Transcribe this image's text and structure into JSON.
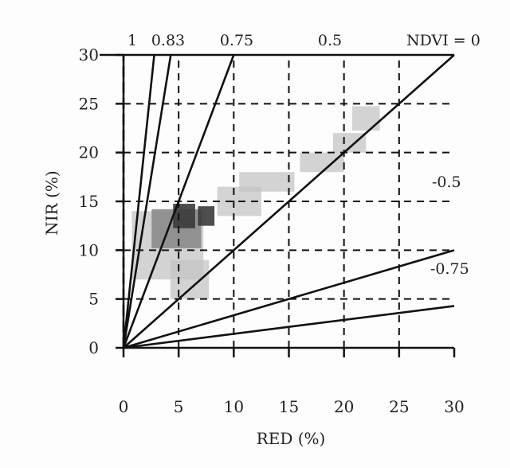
{
  "chart_data": {
    "type": "scatter",
    "title": "",
    "xlabel": "RED (%)",
    "ylabel": "NIR (%)",
    "xlim": [
      0,
      30
    ],
    "ylim": [
      0,
      30
    ],
    "xticks": [
      "0",
      "5",
      "10",
      "15",
      "20",
      "25",
      "30"
    ],
    "yticks": [
      "0",
      "5",
      "10",
      "15",
      "20",
      "25",
      "30"
    ],
    "grid": true,
    "grid_style": "dashed",
    "ndvi_lines": [
      {
        "label": "1",
        "value": 1
      },
      {
        "label": "0.83",
        "value": 0.83
      },
      {
        "label": "0.75",
        "value": 0.75
      },
      {
        "label": "0.5",
        "value": 0.5
      },
      {
        "label": "NDVI = 0",
        "value": 0
      },
      {
        "label": "-0.5",
        "value": -0.5
      },
      {
        "label": "-0.75",
        "value": -0.75
      }
    ],
    "density_cells": [
      {
        "x": 5.5,
        "y": 13.5,
        "w": 2,
        "h": 2.5,
        "level": 3
      },
      {
        "x": 7.5,
        "y": 13.5,
        "w": 1.5,
        "h": 2,
        "level": 3
      },
      {
        "x": 4.8,
        "y": 12.2,
        "w": 4.5,
        "h": 4,
        "level": 2
      },
      {
        "x": 4.0,
        "y": 10.5,
        "w": 6.5,
        "h": 7,
        "level": 1
      },
      {
        "x": 6.0,
        "y": 7.0,
        "w": 3.5,
        "h": 4,
        "level": 1
      },
      {
        "x": 10.5,
        "y": 15.0,
        "w": 4,
        "h": 3,
        "level": 1
      },
      {
        "x": 13.0,
        "y": 17.0,
        "w": 5,
        "h": 2,
        "level": 1
      },
      {
        "x": 18.0,
        "y": 19.0,
        "w": 4,
        "h": 2,
        "level": 1
      },
      {
        "x": 20.5,
        "y": 21.0,
        "w": 3,
        "h": 2,
        "level": 1
      },
      {
        "x": 22.0,
        "y": 23.5,
        "w": 2.5,
        "h": 2.5,
        "level": 1
      }
    ],
    "colors": {
      "low": "#c4c4c4",
      "mid": "#8a8a8a",
      "high": "#3a3a3a",
      "line": "#111111"
    }
  }
}
